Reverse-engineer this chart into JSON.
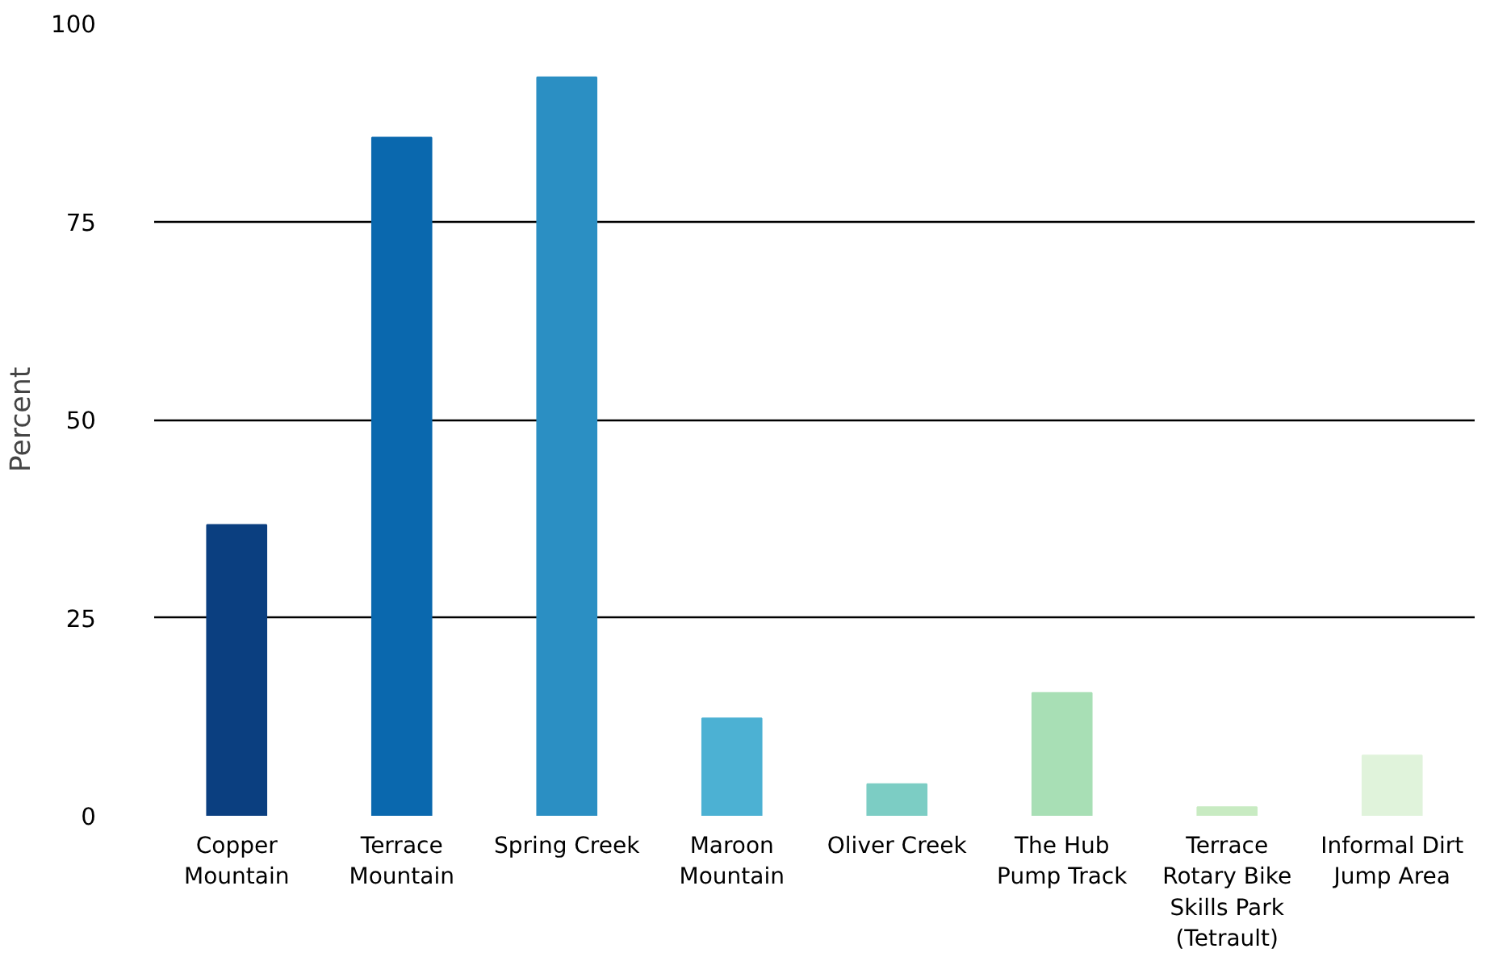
{
  "chart_data": {
    "type": "bar",
    "ylabel": "Percent",
    "categories": [
      "Copper\nMountain",
      "Terrace\nMountain",
      "Spring Creek",
      "Maroon\nMountain",
      "Oliver Creek",
      "The Hub\nPump Track",
      "Terrace\nRotary Bike\nSkills Park\n(Tetrault)",
      "Informal Dirt\nJump Area"
    ],
    "values": [
      36.7,
      85.6,
      93.2,
      12.3,
      4.0,
      15.5,
      1.1,
      7.6
    ],
    "colors": [
      "#0b3f80",
      "#0a68ae",
      "#2b8fc3",
      "#4cb1d3",
      "#7ccdc4",
      "#a8dfb5",
      "#c8ebc2",
      "#e0f3db"
    ],
    "ylim": [
      0,
      100
    ],
    "yticks": [
      0,
      25,
      50,
      75,
      100
    ],
    "grid": "y"
  }
}
